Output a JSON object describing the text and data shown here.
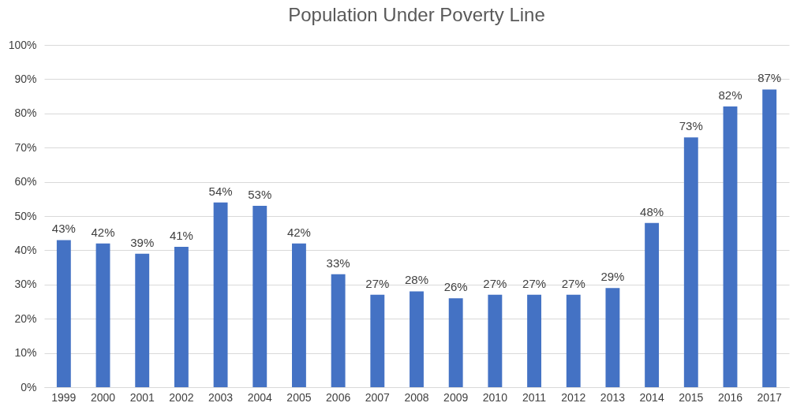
{
  "chart_data": {
    "type": "bar",
    "title": "Population Under Poverty Line",
    "categories": [
      "1999",
      "2000",
      "2001",
      "2002",
      "2003",
      "2004",
      "2005",
      "2006",
      "2007",
      "2008",
      "2009",
      "2010",
      "2011",
      "2012",
      "2013",
      "2014",
      "2015",
      "2016",
      "2017"
    ],
    "values": [
      43,
      42,
      39,
      41,
      54,
      53,
      42,
      33,
      27,
      28,
      26,
      27,
      27,
      27,
      29,
      48,
      73,
      82,
      87
    ],
    "value_labels": [
      "43%",
      "42%",
      "39%",
      "41%",
      "54%",
      "53%",
      "42%",
      "33%",
      "27%",
      "28%",
      "26%",
      "27%",
      "27%",
      "27%",
      "29%",
      "48%",
      "73%",
      "82%",
      "87%"
    ],
    "color": "#4472c4",
    "ylim": [
      0,
      100
    ],
    "yticks": [
      {
        "value": 0,
        "label": "0%"
      },
      {
        "value": 10,
        "label": "10%"
      },
      {
        "value": 20,
        "label": "20%"
      },
      {
        "value": 30,
        "label": "30%"
      },
      {
        "value": 40,
        "label": "40%"
      },
      {
        "value": 50,
        "label": "50%"
      },
      {
        "value": 60,
        "label": "60%"
      },
      {
        "value": 70,
        "label": "70%"
      },
      {
        "value": 80,
        "label": "80%"
      },
      {
        "value": 90,
        "label": "90%"
      },
      {
        "value": 100,
        "label": "100%"
      }
    ],
    "grid": "y"
  }
}
